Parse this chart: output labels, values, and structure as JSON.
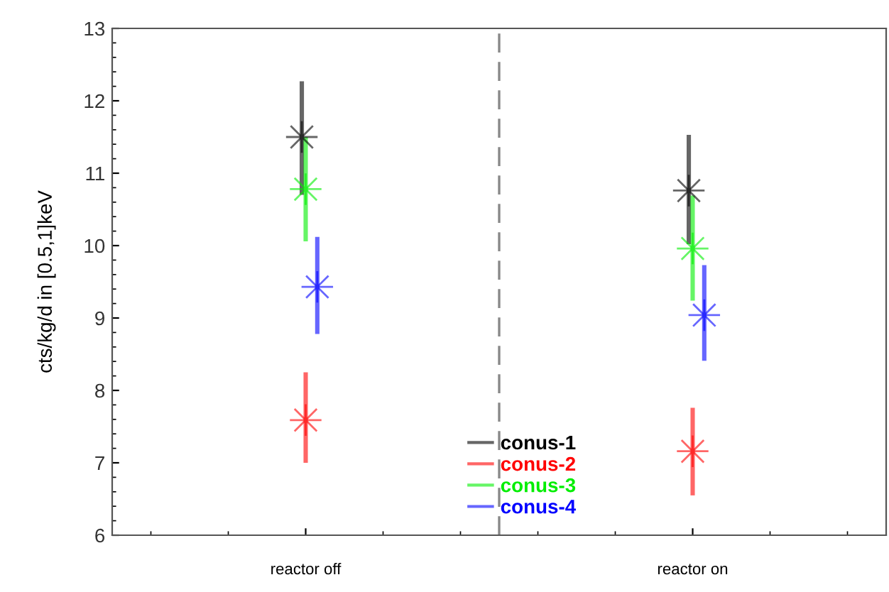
{
  "chart_data": {
    "type": "scatter",
    "ylabel": "cts/kg/d in [0.5,1]keV",
    "categories": [
      "reactor off",
      "reactor on"
    ],
    "series": [
      {
        "name": "conus-1",
        "color": "#000000",
        "values": [
          11.5,
          10.76
        ],
        "errors": [
          [
            10.7,
            12.27
          ],
          [
            10.02,
            11.53
          ]
        ]
      },
      {
        "name": "conus-2",
        "color": "#ff0000",
        "values": [
          7.59,
          7.16
        ],
        "errors": [
          [
            7.0,
            8.25
          ],
          [
            6.55,
            7.76
          ]
        ]
      },
      {
        "name": "conus-3",
        "color": "#00ee00",
        "values": [
          10.78,
          9.96
        ],
        "errors": [
          [
            10.06,
            11.5
          ],
          [
            9.24,
            10.69
          ]
        ]
      },
      {
        "name": "conus-4",
        "color": "#0000ff",
        "values": [
          9.43,
          9.04
        ],
        "errors": [
          [
            8.78,
            10.12
          ],
          [
            8.41,
            9.73
          ]
        ]
      }
    ],
    "ylim": [
      6,
      13
    ],
    "yticks": [
      6,
      7,
      8,
      9,
      10,
      11,
      12,
      13
    ],
    "marker": "star",
    "legend": "bottom",
    "grid": false
  }
}
